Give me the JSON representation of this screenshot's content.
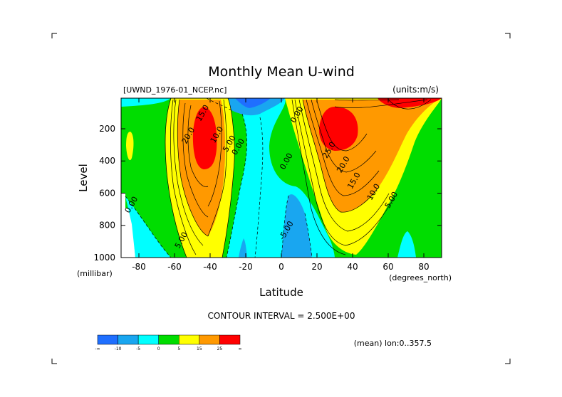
{
  "chart_data": {
    "type": "heatmap",
    "title": "Monthly Mean U-wind",
    "dataset_label": "[UWND_1976-01_NCEP.nc]",
    "units_label": "(units:m/s)",
    "xlabel": "Latitude",
    "ylabel": "Level",
    "x_units": "(degrees_north)",
    "y_units": "(millibar)",
    "xlim": [
      -90,
      90
    ],
    "ylim": [
      1000,
      10
    ],
    "x_ticks": [
      "-80",
      "-60",
      "-40",
      "-20",
      "0",
      "20",
      "40",
      "60",
      "80"
    ],
    "x_tick_values": [
      -80,
      -60,
      -40,
      -20,
      0,
      20,
      40,
      60,
      80
    ],
    "y_ticks": [
      "200",
      "400",
      "600",
      "800",
      "1000"
    ],
    "y_tick_values": [
      200,
      400,
      600,
      800,
      1000
    ],
    "contour_interval_label": "CONTOUR INTERVAL = 2.500E+00",
    "mean_label": "(mean) lon:0..357.5",
    "colorbar": {
      "colors": [
        "#1f6fff",
        "#19a6f0",
        "#00ffff",
        "#00dd00",
        "#ffff00",
        "#ff9900",
        "#ff0000"
      ],
      "labels": [
        "-∞",
        "-10",
        "-5",
        "0",
        "5",
        "15",
        "25",
        "∞"
      ]
    },
    "contour_labels": [
      {
        "text": "15.0",
        "lat": -43,
        "p": 110
      },
      {
        "text": "20.0",
        "lat": -51,
        "p": 250
      },
      {
        "text": "10.0",
        "lat": -35,
        "p": 245
      },
      {
        "text": "5.00",
        "lat": -28,
        "p": 300
      },
      {
        "text": "0.00",
        "lat": -23,
        "p": 320
      },
      {
        "text": "0.00",
        "lat": 4,
        "p": 410
      },
      {
        "text": "0.00",
        "lat": -83,
        "p": 680
      },
      {
        "text": "5.00",
        "lat": -55,
        "p": 900
      },
      {
        "text": "-5.00",
        "lat": 4,
        "p": 840
      },
      {
        "text": "0.00",
        "lat": 10,
        "p": 120
      },
      {
        "text": "25.0",
        "lat": 28,
        "p": 340
      },
      {
        "text": "20.0",
        "lat": 36,
        "p": 430
      },
      {
        "text": "15.0",
        "lat": 42,
        "p": 530
      },
      {
        "text": "10.0",
        "lat": 53,
        "p": 600
      },
      {
        "text": "5.00",
        "lat": 63,
        "p": 650
      }
    ]
  }
}
